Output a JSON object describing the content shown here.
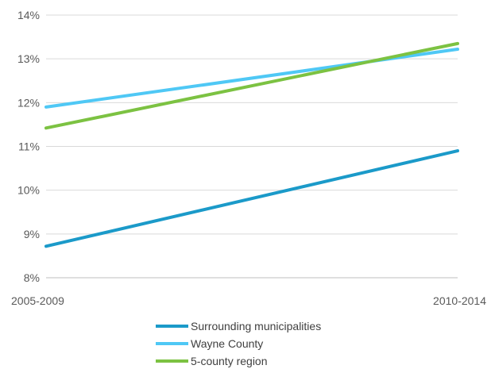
{
  "chart_data": {
    "type": "line",
    "categories": [
      "2005-2009",
      "2010-2014"
    ],
    "ylim": [
      8,
      14
    ],
    "yticks": [
      8,
      9,
      10,
      11,
      12,
      13,
      14
    ],
    "ytick_labels": [
      "8%",
      "9%",
      "10%",
      "11%",
      "12%",
      "13%",
      "14%"
    ],
    "grid": true,
    "legend_position": "bottom",
    "series": [
      {
        "name": "Surrounding municipalities",
        "values": [
          8.72,
          10.9
        ],
        "color": "#1B9AC9"
      },
      {
        "name": "Wayne County",
        "values": [
          11.9,
          13.22
        ],
        "color": "#4FC8F5"
      },
      {
        "name": "5-county region",
        "values": [
          11.42,
          13.35
        ],
        "color": "#7CC242"
      }
    ]
  }
}
